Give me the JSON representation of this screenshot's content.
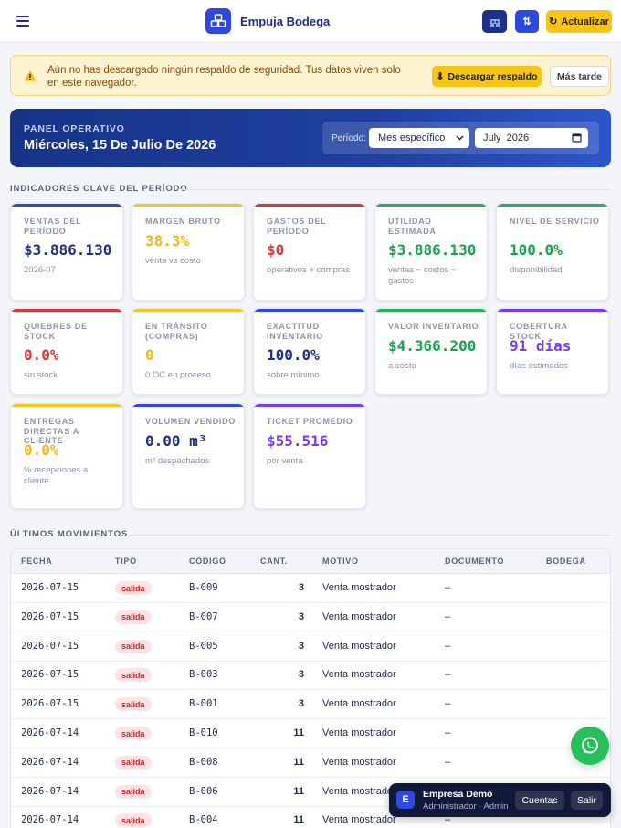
{
  "header": {
    "menu_icon": "hamburger-icon",
    "brand_icon": "warehouse-logo-icon",
    "brand": "Empuja Bodega",
    "warehouse_icon": "building-icon",
    "swap_label": "⇅",
    "refresh_label": "Actualizar",
    "refresh_icon": "refresh-icon"
  },
  "alert": {
    "icon": "warning-icon",
    "text": "Aún no has descargado ningún respaldo de seguridad. Tus datos viven solo en este navegador.",
    "download_label": "Descargar respaldo",
    "download_icon": "download-icon",
    "later_label": "Más tarde"
  },
  "panel": {
    "label": "PANEL OPERATIVO",
    "date": "Miércoles, 15 De Julio De 2026",
    "period_label": "Período:",
    "period_value": "Mes específico",
    "month_value": "July  2026"
  },
  "kpi_section": {
    "title": "INDICADORES CLAVE DEL PERÍODO"
  },
  "kpis": [
    {
      "label": "VENTAS DEL PERÍODO",
      "value": "$3.886.130",
      "sub": "2026-07",
      "color": "#1e2f8a",
      "accent": "#2f49e0"
    },
    {
      "label": "MARGEN BRUTO",
      "value": "38.3%",
      "sub": "venta vs costo",
      "color": "#f5b80d",
      "accent": "#f5c518"
    },
    {
      "label": "GASTOS DEL PERÍODO",
      "value": "$0",
      "sub": "operativos + compras",
      "color": "#e03434",
      "accent": "#d9363e"
    },
    {
      "label": "UTILIDAD ESTIMADA",
      "value": "$3.886.130",
      "sub": "ventas − costos − gastos",
      "color": "#17a34a",
      "accent": "#22b35a"
    },
    {
      "label": "NIVEL DE SERVICIO",
      "value": "100.0%",
      "sub": "disponibilidad",
      "color": "#17a34a",
      "accent": "#22b35a"
    },
    {
      "label": "QUIEBRES DE STOCK",
      "value": "0.0%",
      "sub": "sin stock",
      "color": "#e03434",
      "accent": "#d9363e"
    },
    {
      "label": "EN TRÁNSITO (COMPRAS)",
      "value": "0",
      "sub": "0 OC en proceso",
      "color": "#f5b80d",
      "accent": "#f5c518"
    },
    {
      "label": "EXACTITUD INVENTARIO",
      "value": "100.0%",
      "sub": "sobre mínimo",
      "color": "#1e2f8a",
      "accent": "#2f49e0"
    },
    {
      "label": "VALOR INVENTARIO",
      "value": "$4.366.200",
      "sub": "a costo",
      "color": "#17a34a",
      "accent": "#22b35a"
    },
    {
      "label": "COBERTURA STOCK",
      "value": "91 días",
      "sub": "días estimados",
      "color": "#7c3aed",
      "accent": "#7c3aed"
    },
    {
      "label": "ENTREGAS DIRECTAS A CLIENTE",
      "value": "0.0%",
      "sub": "% recepciones a cliente",
      "color": "#f5b80d",
      "accent": "#f5c518"
    },
    {
      "label": "VOLUMEN VENDIDO",
      "value": "0.00 m³",
      "sub": "m³ despachados",
      "color": "#1e2f8a",
      "accent": "#2f49e0"
    },
    {
      "label": "TICKET PROMEDIO",
      "value": "$55.516",
      "sub": "por venta",
      "color": "#7c3aed",
      "accent": "#7c3aed"
    }
  ],
  "movements": {
    "title": "ÚLTIMOS MOVIMIENTOS",
    "headers": [
      "FECHA",
      "TIPO",
      "CÓDIGO",
      "CANT.",
      "MOTIVO",
      "DOCUMENTO",
      "BODEGA"
    ],
    "rows": [
      {
        "fecha": "2026-07-15",
        "tipo": "salida",
        "codigo": "B-009",
        "cant": "3",
        "motivo": "Venta mostrador",
        "documento": "–",
        "bodega": ""
      },
      {
        "fecha": "2026-07-15",
        "tipo": "salida",
        "codigo": "B-007",
        "cant": "3",
        "motivo": "Venta mostrador",
        "documento": "–",
        "bodega": ""
      },
      {
        "fecha": "2026-07-15",
        "tipo": "salida",
        "codigo": "B-005",
        "cant": "3",
        "motivo": "Venta mostrador",
        "documento": "–",
        "bodega": ""
      },
      {
        "fecha": "2026-07-15",
        "tipo": "salida",
        "codigo": "B-003",
        "cant": "3",
        "motivo": "Venta mostrador",
        "documento": "–",
        "bodega": ""
      },
      {
        "fecha": "2026-07-15",
        "tipo": "salida",
        "codigo": "B-001",
        "cant": "3",
        "motivo": "Venta mostrador",
        "documento": "–",
        "bodega": ""
      },
      {
        "fecha": "2026-07-14",
        "tipo": "salida",
        "codigo": "B-010",
        "cant": "11",
        "motivo": "Venta mostrador",
        "documento": "–",
        "bodega": ""
      },
      {
        "fecha": "2026-07-14",
        "tipo": "salida",
        "codigo": "B-008",
        "cant": "11",
        "motivo": "Venta mostrador",
        "documento": "–",
        "bodega": ""
      },
      {
        "fecha": "2026-07-14",
        "tipo": "salida",
        "codigo": "B-006",
        "cant": "11",
        "motivo": "Venta mostrador",
        "documento": "",
        "bodega": ""
      },
      {
        "fecha": "2026-07-14",
        "tipo": "salida",
        "codigo": "B-004",
        "cant": "11",
        "motivo": "Venta mostrador",
        "documento": "–",
        "bodega": ""
      }
    ]
  },
  "whatsapp": {
    "icon": "whatsapp-icon"
  },
  "company": {
    "avatar": "E",
    "name": "Empresa Demo",
    "role": "Administrador · Admin",
    "accounts_label": "Cuentas",
    "exit_label": "Salir"
  }
}
